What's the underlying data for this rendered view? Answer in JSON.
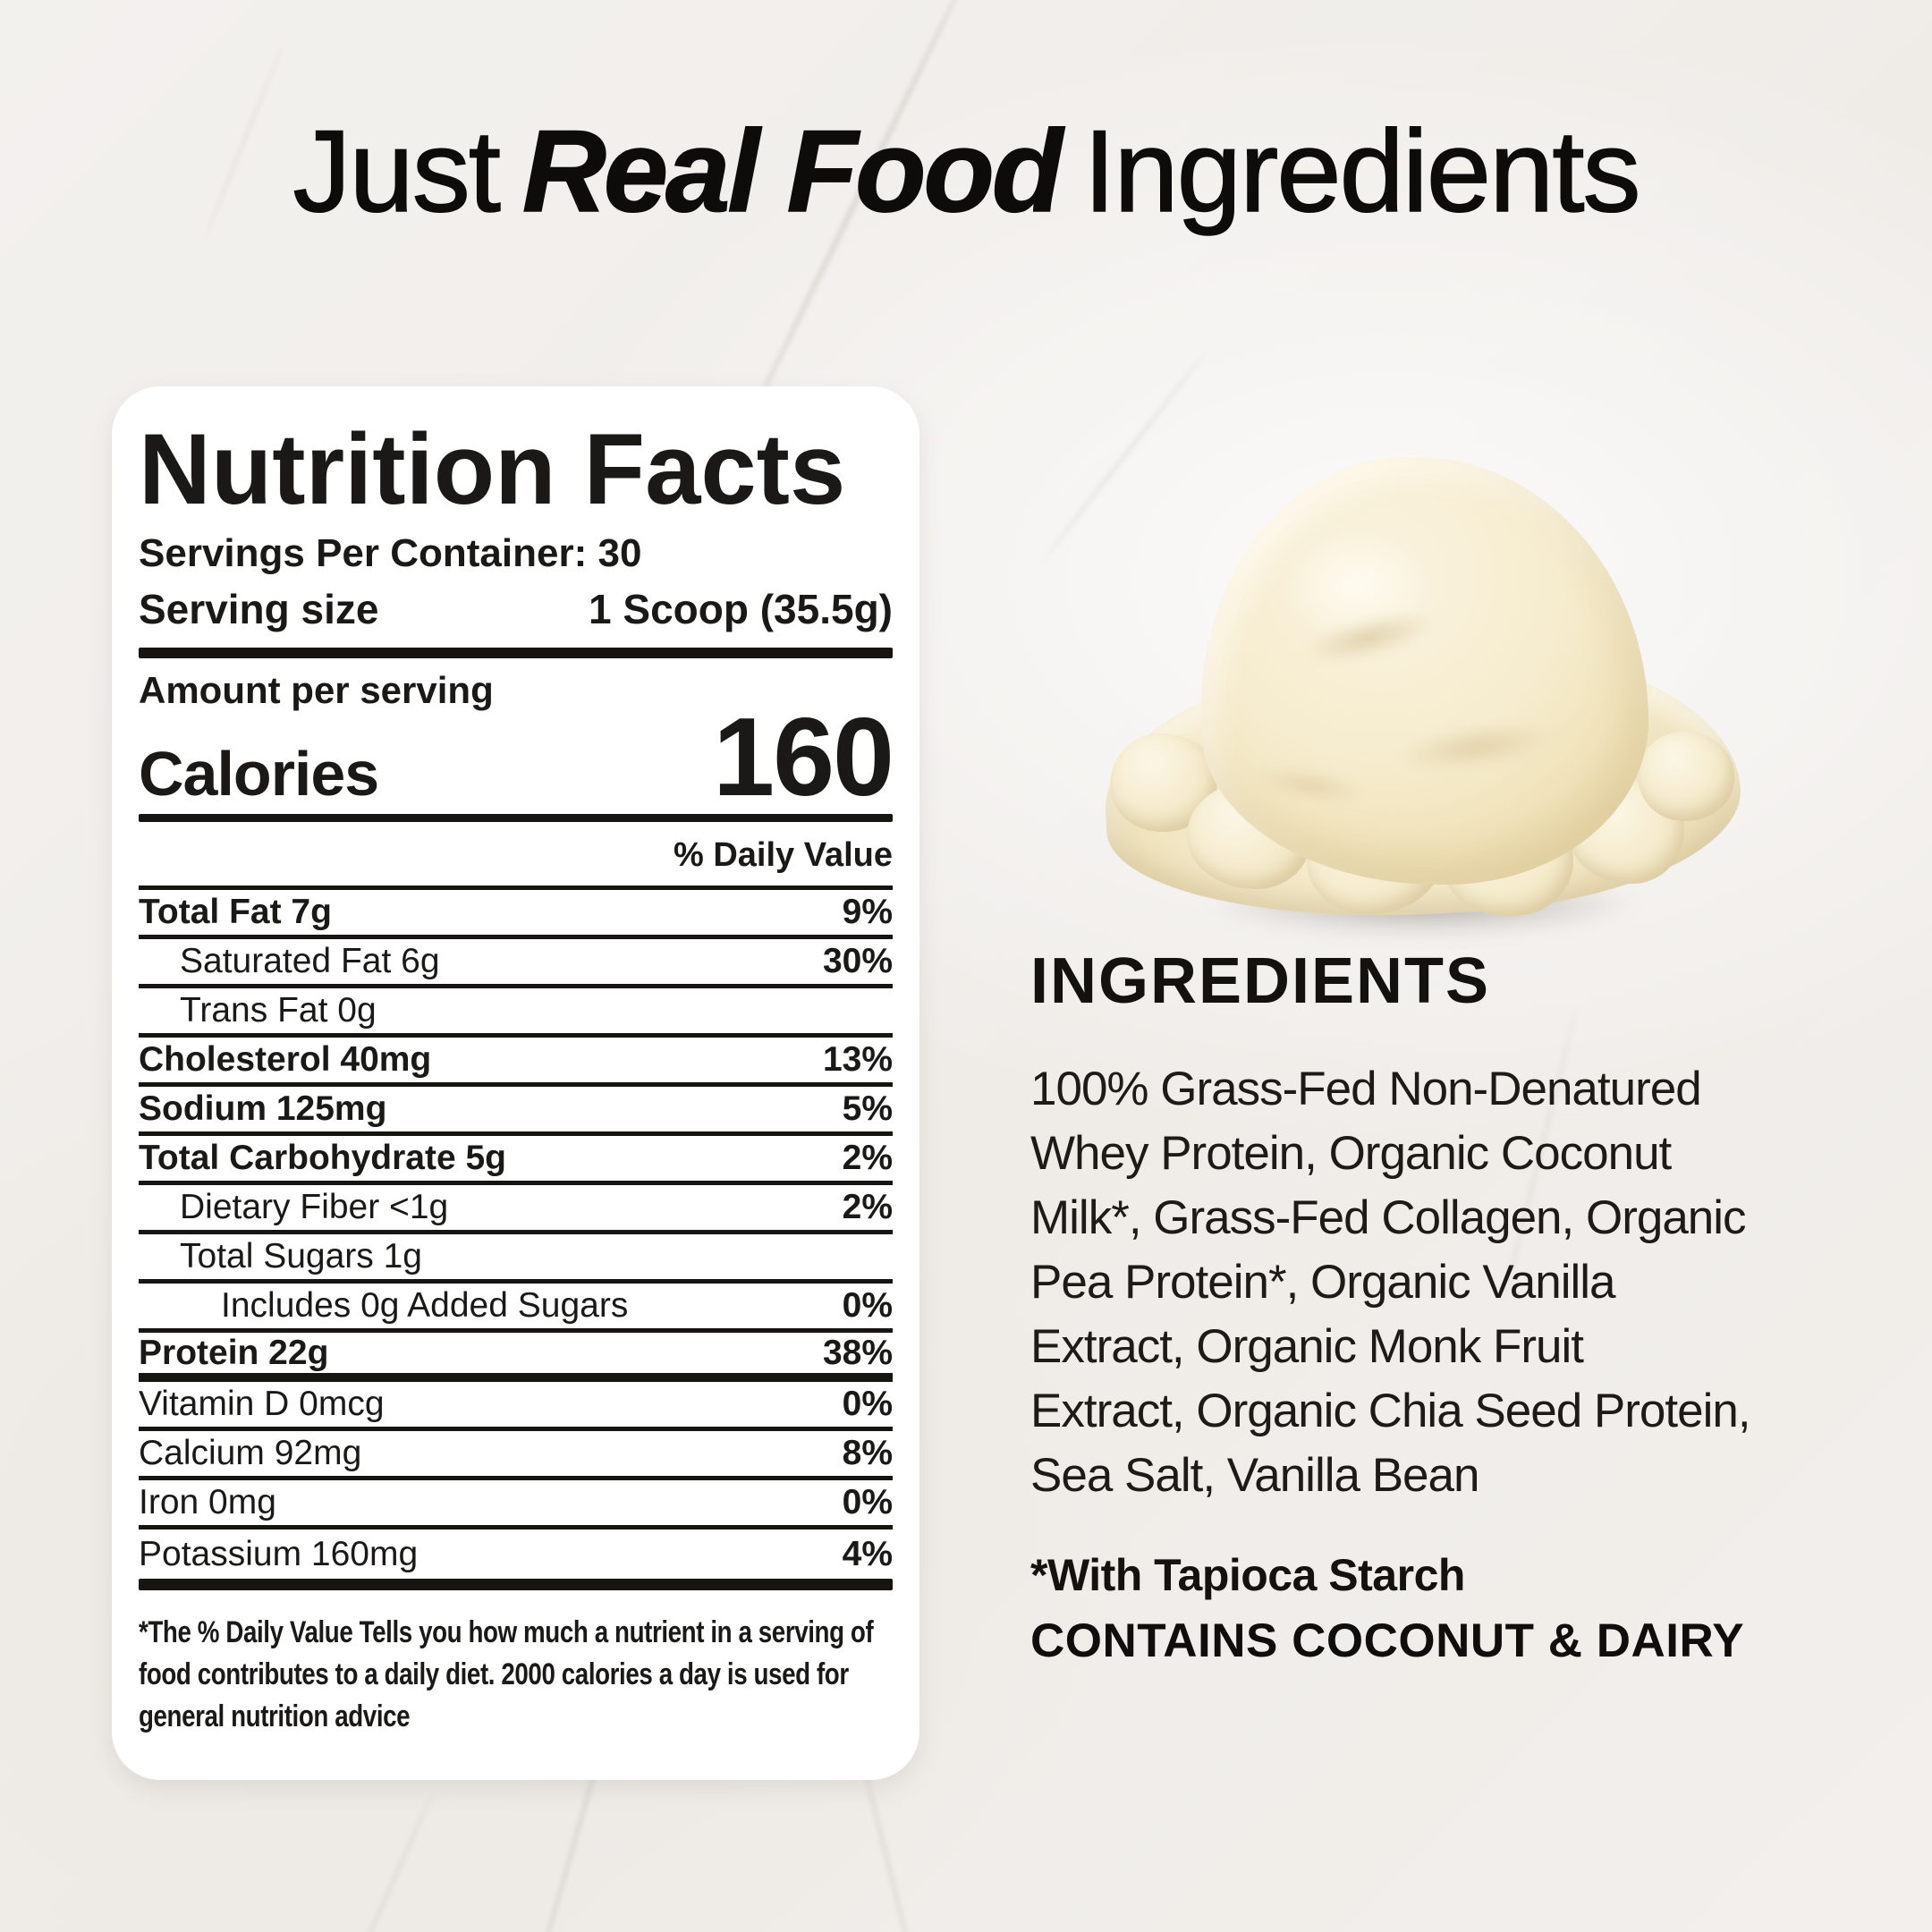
{
  "title": {
    "prefix": "Just",
    "emphasis": "Real Food",
    "suffix": "Ingredients"
  },
  "nutrition_label": {
    "heading": "Nutrition Facts",
    "servings_per_container": "Servings Per Container: 30",
    "serving_size_label": "Serving size",
    "serving_size_value": "1 Scoop (35.5g)",
    "amount_per_serving": "Amount per serving",
    "calories_label": "Calories",
    "calories_value": "160",
    "daily_value_header": "% Daily Value",
    "rows": [
      {
        "label": "Total Fat 7g",
        "dv": "9%"
      },
      {
        "label": "Saturated Fat 6g",
        "dv": "30%"
      },
      {
        "label": "Trans Fat 0g",
        "dv": ""
      },
      {
        "label": "Cholesterol 40mg",
        "dv": "13%"
      },
      {
        "label": "Sodium 125mg",
        "dv": "5%"
      },
      {
        "label": "Total Carbohydrate 5g",
        "dv": "2%"
      },
      {
        "label": "Dietary Fiber <1g",
        "dv": "2%"
      },
      {
        "label": "Total Sugars  1g",
        "dv": ""
      },
      {
        "label": "Includes 0g Added Sugars",
        "dv": "0%"
      },
      {
        "label": "Protein 22g",
        "dv": "38%"
      },
      {
        "label": "Vitamin D 0mcg",
        "dv": "0%"
      },
      {
        "label": "Calcium 92mg",
        "dv": "8%"
      },
      {
        "label": "Iron 0mg",
        "dv": "0%"
      },
      {
        "label": "Potassium 160mg",
        "dv": "4%"
      }
    ],
    "footnote": "*The % Daily Value Tells you how much a nutrient in a serving of food contributes to a daily diet. 2000 calories a day is used for general nutrition advice"
  },
  "ingredients": {
    "heading": "INGREDIENTS",
    "lines": [
      "100% Grass-Fed Non-Denatured",
      "Whey Protein, Organic Coconut",
      "Milk*, Grass-Fed Collagen, Organic",
      "Pea Protein*, Organic Vanilla",
      "Extract, Organic Monk Fruit",
      "Extract, Organic Chia Seed Protein,",
      "Sea Salt, Vanilla Bean"
    ],
    "note": "*With Tapioca Starch",
    "allergen": "CONTAINS COCONUT & DAIRY"
  },
  "image": {
    "subject": "vanilla-ice-cream-scoop"
  },
  "colors": {
    "background_marble": "#f1efec",
    "marble_vein": "#9a948a",
    "card_background": "#ffffff",
    "text": "#161511",
    "ice_cream_cream": "#f6ecce",
    "ice_cream_shadow": "#e7d4a4"
  }
}
